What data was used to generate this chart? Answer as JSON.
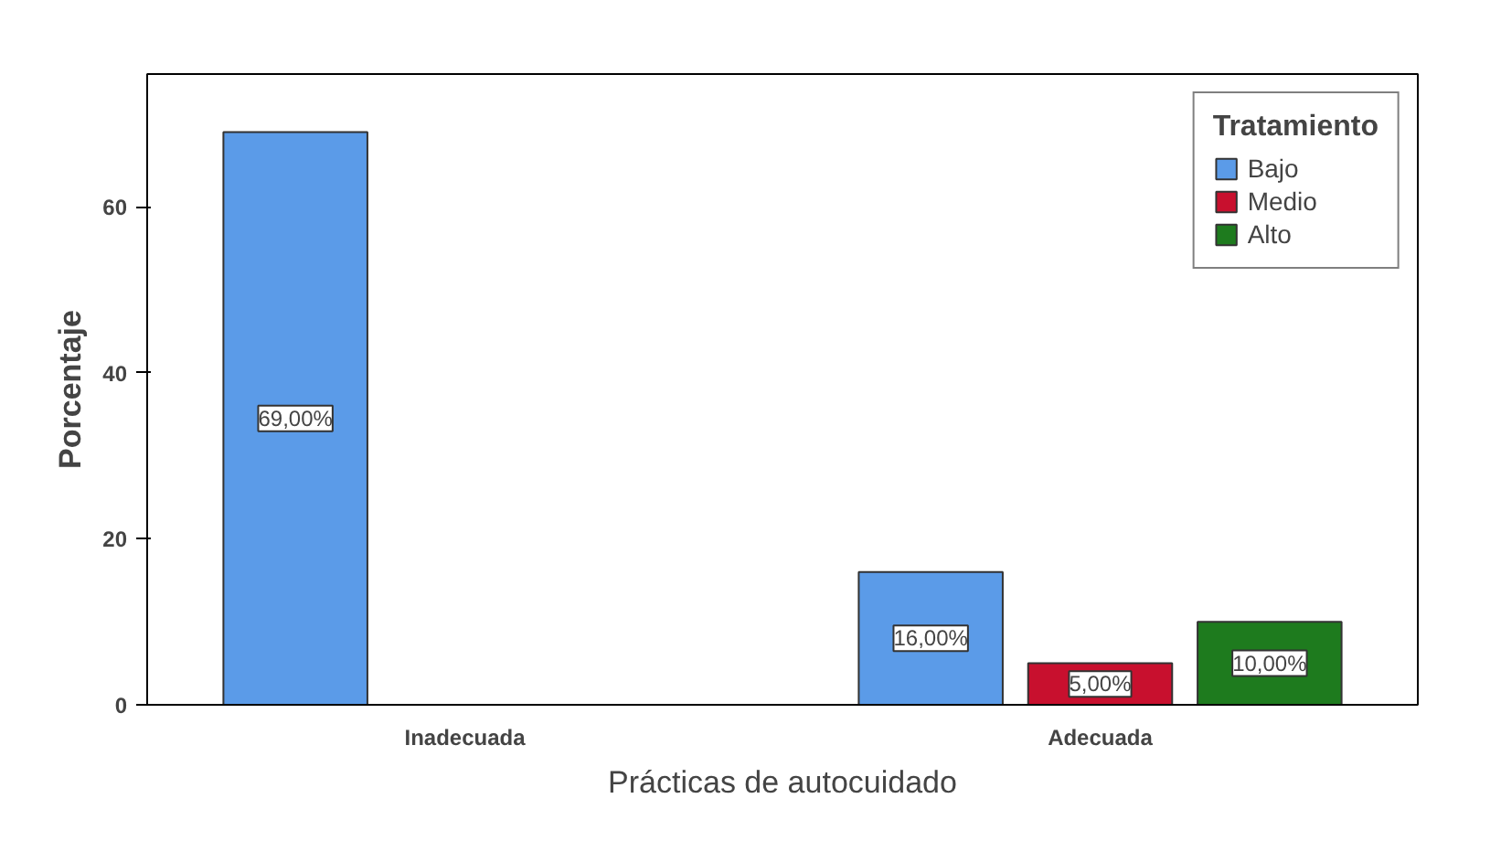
{
  "chart_data": {
    "type": "bar",
    "xlabel": "Prácticas de autocuidado",
    "ylabel": "Porcentaje",
    "legend_title": "Tratamiento",
    "categories": [
      "Inadecuada",
      "Adecuada"
    ],
    "series": [
      {
        "name": "Bajo",
        "color": "#5b9be8",
        "values": [
          69,
          16
        ],
        "value_labels": [
          "69,00%",
          "16,00%"
        ]
      },
      {
        "name": "Medio",
        "color": "#c8102e",
        "values": [
          null,
          5
        ],
        "value_labels": [
          null,
          "5,00%"
        ]
      },
      {
        "name": "Alto",
        "color": "#1e7b1e",
        "values": [
          null,
          10
        ],
        "value_labels": [
          null,
          "10,00%"
        ]
      }
    ],
    "ylim": [
      0,
      76
    ],
    "yticks": [
      0,
      20,
      40,
      60
    ],
    "grid": false,
    "legend": "top right"
  }
}
